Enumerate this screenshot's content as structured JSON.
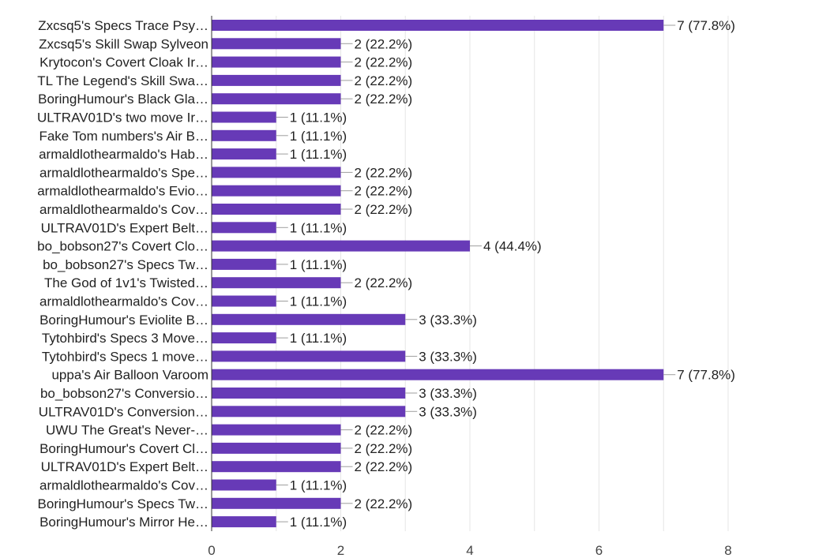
{
  "chart_data": {
    "type": "bar",
    "orientation": "horizontal",
    "bar_color": "#673ab7",
    "xlim": [
      0,
      8
    ],
    "xticks": [
      "0",
      "2",
      "4",
      "6",
      "8"
    ],
    "grid": true,
    "categories": [
      "Zxcsq5's Specs Trace Psy…",
      "Zxcsq5's Skill Swap Sylveon",
      "Krytocon's Covert Cloak Ir…",
      "TL The Legend's Skill Swa…",
      "BoringHumour's Black Gla…",
      "ULTRAV01D's two move Ir…",
      "Fake Tom numbers's Air B…",
      "armaldlothearmaldo's Hab…",
      "armaldlothearmaldo's Spe…",
      "armaldlothearmaldo's Evio…",
      "armaldlothearmaldo's Cov…",
      "ULTRAV01D's Expert Belt…",
      "bo_bobson27's Covert Clo…",
      "bo_bobson27's Specs Tw…",
      "The God of 1v1's Twisted…",
      "armaldlothearmaldo's Cov…",
      "BoringHumour's Eviolite B…",
      "Tytohbird's Specs 3 Move…",
      "Tytohbird's Specs 1 move…",
      "uppa's Air Balloon Varoom",
      "bo_bobson27's Conversio…",
      "ULTRAV01D's Conversion…",
      "UWU The Great's Never-…",
      "BoringHumour's Covert Cl…",
      "ULTRAV01D's Expert Belt…",
      "armaldlothearmaldo's Cov…",
      "BoringHumour's Specs Tw…",
      "BoringHumour's Mirror He…"
    ],
    "values": [
      7,
      2,
      2,
      2,
      2,
      1,
      1,
      1,
      2,
      2,
      2,
      1,
      4,
      1,
      2,
      1,
      3,
      1,
      3,
      7,
      3,
      3,
      2,
      2,
      2,
      1,
      2,
      1
    ],
    "value_labels": [
      "7 (77.8%)",
      "2 (22.2%)",
      "2 (22.2%)",
      "2 (22.2%)",
      "2 (22.2%)",
      "1 (11.1%)",
      "1 (11.1%)",
      "1 (11.1%)",
      "2 (22.2%)",
      "2 (22.2%)",
      "2 (22.2%)",
      "1 (11.1%)",
      "4 (44.4%)",
      "1 (11.1%)",
      "2 (22.2%)",
      "1 (11.1%)",
      "3 (33.3%)",
      "1 (11.1%)",
      "3 (33.3%)",
      "7 (77.8%)",
      "3 (33.3%)",
      "3 (33.3%)",
      "2 (22.2%)",
      "2 (22.2%)",
      "2 (22.2%)",
      "1 (11.1%)",
      "2 (22.2%)",
      "1 (11.1%)"
    ]
  }
}
